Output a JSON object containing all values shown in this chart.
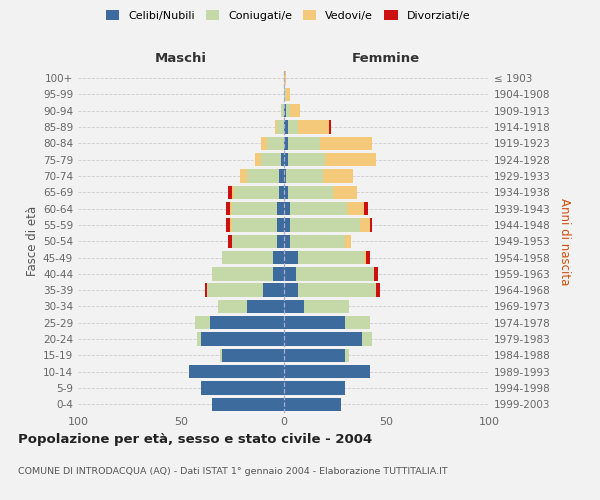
{
  "age_groups": [
    "0-4",
    "5-9",
    "10-14",
    "15-19",
    "20-24",
    "25-29",
    "30-34",
    "35-39",
    "40-44",
    "45-49",
    "50-54",
    "55-59",
    "60-64",
    "65-69",
    "70-74",
    "75-79",
    "80-84",
    "85-89",
    "90-94",
    "95-99",
    "100+"
  ],
  "birth_years": [
    "1999-2003",
    "1994-1998",
    "1989-1993",
    "1984-1988",
    "1979-1983",
    "1974-1978",
    "1969-1973",
    "1964-1968",
    "1959-1963",
    "1954-1958",
    "1949-1953",
    "1944-1948",
    "1939-1943",
    "1934-1938",
    "1929-1933",
    "1924-1928",
    "1919-1923",
    "1914-1918",
    "1909-1913",
    "1904-1908",
    "≤ 1903"
  ],
  "colors": {
    "celibi": "#3d6b9e",
    "coniugati": "#c5d9a8",
    "vedovi": "#f5c97a",
    "divorziati": "#cc1111"
  },
  "males": {
    "celibi": [
      35,
      40,
      46,
      30,
      40,
      36,
      18,
      10,
      5,
      5,
      3,
      3,
      3,
      2,
      2,
      1,
      0,
      0,
      0,
      0,
      0
    ],
    "coniugati": [
      0,
      0,
      0,
      1,
      2,
      7,
      14,
      27,
      30,
      25,
      22,
      22,
      22,
      22,
      16,
      10,
      8,
      3,
      1,
      0,
      0
    ],
    "vedovi": [
      0,
      0,
      0,
      0,
      0,
      0,
      0,
      0,
      0,
      0,
      0,
      1,
      1,
      1,
      3,
      3,
      3,
      1,
      0,
      0,
      0
    ],
    "divorziati": [
      0,
      0,
      0,
      0,
      0,
      0,
      0,
      1,
      0,
      0,
      2,
      2,
      2,
      2,
      0,
      0,
      0,
      0,
      0,
      0,
      0
    ]
  },
  "females": {
    "celibi": [
      28,
      30,
      42,
      30,
      38,
      30,
      10,
      7,
      6,
      7,
      3,
      3,
      3,
      2,
      1,
      2,
      2,
      2,
      1,
      0,
      0
    ],
    "coniugati": [
      0,
      0,
      0,
      2,
      5,
      12,
      22,
      38,
      38,
      32,
      27,
      34,
      28,
      22,
      18,
      18,
      16,
      5,
      2,
      1,
      0
    ],
    "vedovi": [
      0,
      0,
      0,
      0,
      0,
      0,
      0,
      0,
      0,
      1,
      3,
      5,
      8,
      12,
      15,
      25,
      25,
      15,
      5,
      2,
      1
    ],
    "divorziati": [
      0,
      0,
      0,
      0,
      0,
      0,
      0,
      2,
      2,
      2,
      0,
      1,
      2,
      0,
      0,
      0,
      0,
      1,
      0,
      0,
      0
    ]
  },
  "title": "Popolazione per età, sesso e stato civile - 2004",
  "subtitle": "COMUNE DI INTRODACQUA (AQ) - Dati ISTAT 1° gennaio 2004 - Elaborazione TUTTITALIA.IT",
  "xlabel_left": "Maschi",
  "xlabel_right": "Femmine",
  "ylabel_left": "Fasce di età",
  "ylabel_right": "Anni di nascita",
  "xlim": 100,
  "legend_labels": [
    "Celibi/Nubili",
    "Coniugati/e",
    "Vedovi/e",
    "Divorziati/e"
  ],
  "bg_color": "#f2f2f2"
}
